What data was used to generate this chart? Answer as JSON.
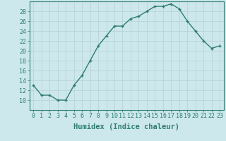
{
  "x": [
    0,
    1,
    2,
    3,
    4,
    5,
    6,
    7,
    8,
    9,
    10,
    11,
    12,
    13,
    14,
    15,
    16,
    17,
    18,
    19,
    20,
    21,
    22,
    23
  ],
  "y": [
    13,
    11,
    11,
    10,
    10,
    13,
    15,
    18,
    21,
    23,
    25,
    25,
    26.5,
    27,
    28,
    29,
    29,
    29.5,
    28.5,
    26,
    24,
    22,
    20.5,
    21
  ],
  "line_color": "#2e7d6e",
  "marker": "+",
  "bg_color": "#cce8ec",
  "grid_color": "#b8d4d8",
  "xlabel": "Humidex (Indice chaleur)",
  "xlim": [
    -0.5,
    23.5
  ],
  "ylim": [
    8,
    30
  ],
  "yticks": [
    10,
    12,
    14,
    16,
    18,
    20,
    22,
    24,
    26,
    28
  ],
  "xticks": [
    0,
    1,
    2,
    3,
    4,
    5,
    6,
    7,
    8,
    9,
    10,
    11,
    12,
    13,
    14,
    15,
    16,
    17,
    18,
    19,
    20,
    21,
    22,
    23
  ],
  "label_fontsize": 7.5,
  "tick_fontsize": 6.0,
  "markersize": 3.5,
  "linewidth": 1.0
}
